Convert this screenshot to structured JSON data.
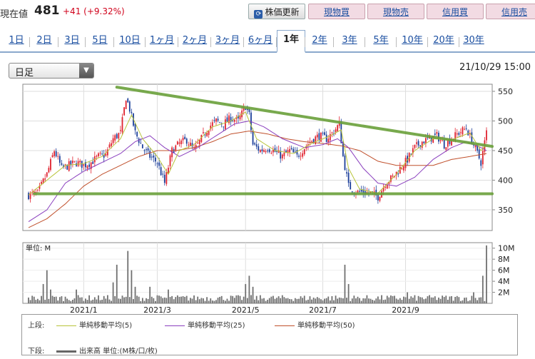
{
  "header": {
    "price_label": "現在値",
    "price_value": "481",
    "price_change": "+41 (+9.32%)",
    "refresh_label": "株価更新",
    "buttons": [
      "現物買",
      "現物売",
      "信用買",
      "信用売"
    ]
  },
  "tabs": [
    "1日",
    "2日",
    "3日",
    "5日",
    "10日",
    "1ヶ月",
    "2ヶ月",
    "3ヶ月",
    "6ヶ月",
    "1年",
    "2年",
    "3年",
    "5年",
    "10年",
    "20年",
    "30年"
  ],
  "active_tab": "1年",
  "selector": {
    "label": "日足"
  },
  "datetime": "21/10/29 15:00",
  "colors": {
    "up": "#e0222f",
    "down": "#1c3f9a",
    "ma5": "#b8c43a",
    "ma25": "#8a3fbe",
    "ma50": "#c0502c",
    "trend": "#6aa03a",
    "volume": "#707070"
  },
  "legend": {
    "upper_label": "上段:",
    "ma5": "単純移動平均(5)",
    "ma25": "単純移動平均(25)",
    "ma50": "単純移動平均(50)",
    "lower_label": "下段:",
    "volume": "出来高 単位:(M株/口/枚)"
  },
  "chart_data": {
    "type": "candlestick",
    "y_ticks": [
      550,
      500,
      450,
      400,
      350
    ],
    "ylim": [
      315,
      562
    ],
    "x_ticks": [
      "2021/1",
      "2021/3",
      "2021/5",
      "2021/7",
      "2021/9"
    ],
    "x_tick_index": [
      30,
      70,
      118,
      160,
      205
    ],
    "n_days": 250,
    "close_path": [
      [
        0,
        375
      ],
      [
        5,
        378
      ],
      [
        8,
        398
      ],
      [
        10,
        410
      ],
      [
        14,
        450
      ],
      [
        18,
        420
      ],
      [
        22,
        425
      ],
      [
        26,
        430
      ],
      [
        30,
        425
      ],
      [
        34,
        430
      ],
      [
        38,
        440
      ],
      [
        42,
        443
      ],
      [
        46,
        470
      ],
      [
        50,
        480
      ],
      [
        53,
        540
      ],
      [
        55,
        520
      ],
      [
        58,
        480
      ],
      [
        62,
        455
      ],
      [
        66,
        440
      ],
      [
        70,
        430
      ],
      [
        74,
        395
      ],
      [
        78,
        450
      ],
      [
        82,
        462
      ],
      [
        86,
        468
      ],
      [
        90,
        450
      ],
      [
        94,
        470
      ],
      [
        98,
        490
      ],
      [
        102,
        500
      ],
      [
        106,
        495
      ],
      [
        110,
        505
      ],
      [
        114,
        500
      ],
      [
        118,
        525
      ],
      [
        120,
        510
      ],
      [
        122,
        460
      ],
      [
        126,
        450
      ],
      [
        130,
        455
      ],
      [
        134,
        448
      ],
      [
        138,
        440
      ],
      [
        142,
        450
      ],
      [
        146,
        440
      ],
      [
        150,
        455
      ],
      [
        154,
        468
      ],
      [
        158,
        475
      ],
      [
        162,
        470
      ],
      [
        166,
        482
      ],
      [
        169,
        495
      ],
      [
        171,
        440
      ],
      [
        174,
        390
      ],
      [
        178,
        380
      ],
      [
        182,
        380
      ],
      [
        186,
        378
      ],
      [
        190,
        372
      ],
      [
        194,
        395
      ],
      [
        198,
        405
      ],
      [
        202,
        420
      ],
      [
        206,
        435
      ],
      [
        210,
        455
      ],
      [
        214,
        465
      ],
      [
        218,
        470
      ],
      [
        222,
        475
      ],
      [
        226,
        460
      ],
      [
        230,
        470
      ],
      [
        234,
        480
      ],
      [
        238,
        488
      ],
      [
        242,
        460
      ],
      [
        246,
        430
      ],
      [
        249,
        481
      ]
    ],
    "ma5_path": [
      [
        0,
        375
      ],
      [
        10,
        400
      ],
      [
        20,
        425
      ],
      [
        30,
        428
      ],
      [
        40,
        440
      ],
      [
        50,
        470
      ],
      [
        56,
        510
      ],
      [
        62,
        470
      ],
      [
        70,
        440
      ],
      [
        76,
        410
      ],
      [
        82,
        450
      ],
      [
        90,
        460
      ],
      [
        100,
        490
      ],
      [
        110,
        500
      ],
      [
        118,
        515
      ],
      [
        124,
        470
      ],
      [
        134,
        450
      ],
      [
        144,
        445
      ],
      [
        154,
        462
      ],
      [
        164,
        475
      ],
      [
        170,
        485
      ],
      [
        174,
        420
      ],
      [
        180,
        385
      ],
      [
        190,
        378
      ],
      [
        200,
        410
      ],
      [
        210,
        450
      ],
      [
        220,
        470
      ],
      [
        230,
        468
      ],
      [
        240,
        480
      ],
      [
        246,
        450
      ],
      [
        249,
        460
      ]
    ],
    "ma25_path": [
      [
        0,
        330
      ],
      [
        10,
        350
      ],
      [
        20,
        395
      ],
      [
        30,
        415
      ],
      [
        40,
        430
      ],
      [
        50,
        445
      ],
      [
        58,
        465
      ],
      [
        66,
        475
      ],
      [
        74,
        455
      ],
      [
        82,
        440
      ],
      [
        92,
        455
      ],
      [
        102,
        475
      ],
      [
        112,
        495
      ],
      [
        120,
        500
      ],
      [
        128,
        490
      ],
      [
        138,
        470
      ],
      [
        150,
        455
      ],
      [
        160,
        460
      ],
      [
        168,
        470
      ],
      [
        174,
        455
      ],
      [
        182,
        420
      ],
      [
        190,
        395
      ],
      [
        200,
        390
      ],
      [
        210,
        405
      ],
      [
        220,
        435
      ],
      [
        230,
        455
      ],
      [
        238,
        465
      ],
      [
        246,
        455
      ],
      [
        249,
        450
      ]
    ],
    "ma50_path": [
      [
        0,
        320
      ],
      [
        10,
        335
      ],
      [
        20,
        360
      ],
      [
        30,
        390
      ],
      [
        40,
        410
      ],
      [
        50,
        425
      ],
      [
        60,
        440
      ],
      [
        70,
        450
      ],
      [
        80,
        450
      ],
      [
        90,
        455
      ],
      [
        100,
        465
      ],
      [
        110,
        478
      ],
      [
        120,
        483
      ],
      [
        130,
        478
      ],
      [
        140,
        470
      ],
      [
        150,
        465
      ],
      [
        160,
        462
      ],
      [
        170,
        458
      ],
      [
        180,
        450
      ],
      [
        190,
        432
      ],
      [
        200,
        425
      ],
      [
        210,
        425
      ],
      [
        220,
        425
      ],
      [
        230,
        435
      ],
      [
        240,
        440
      ],
      [
        249,
        445
      ]
    ],
    "trendlines": [
      {
        "from": [
          48,
          557
        ],
        "to": [
          249,
          457
        ]
      },
      {
        "from": [
          -8,
          377
        ],
        "to": [
          249,
          377
        ]
      }
    ],
    "volume": {
      "unit": "単位: M",
      "y_ticks": [
        "10M",
        "8M",
        "6M",
        "4M",
        "2M"
      ],
      "ylim": [
        0,
        11
      ],
      "spikes": [
        [
          8,
          3.5
        ],
        [
          10,
          6.0
        ],
        [
          12,
          2.5
        ],
        [
          26,
          2.5
        ],
        [
          46,
          3.8
        ],
        [
          48,
          7.0
        ],
        [
          54,
          9.5
        ],
        [
          56,
          6.0
        ],
        [
          58,
          3.0
        ],
        [
          66,
          3.0
        ],
        [
          76,
          2.5
        ],
        [
          118,
          3.5
        ],
        [
          120,
          5.0
        ],
        [
          122,
          3.0
        ],
        [
          172,
          7.0
        ],
        [
          174,
          3.5
        ],
        [
          206,
          2.0
        ],
        [
          242,
          2.0
        ],
        [
          247,
          5.0
        ],
        [
          249,
          10.5
        ]
      ]
    }
  }
}
